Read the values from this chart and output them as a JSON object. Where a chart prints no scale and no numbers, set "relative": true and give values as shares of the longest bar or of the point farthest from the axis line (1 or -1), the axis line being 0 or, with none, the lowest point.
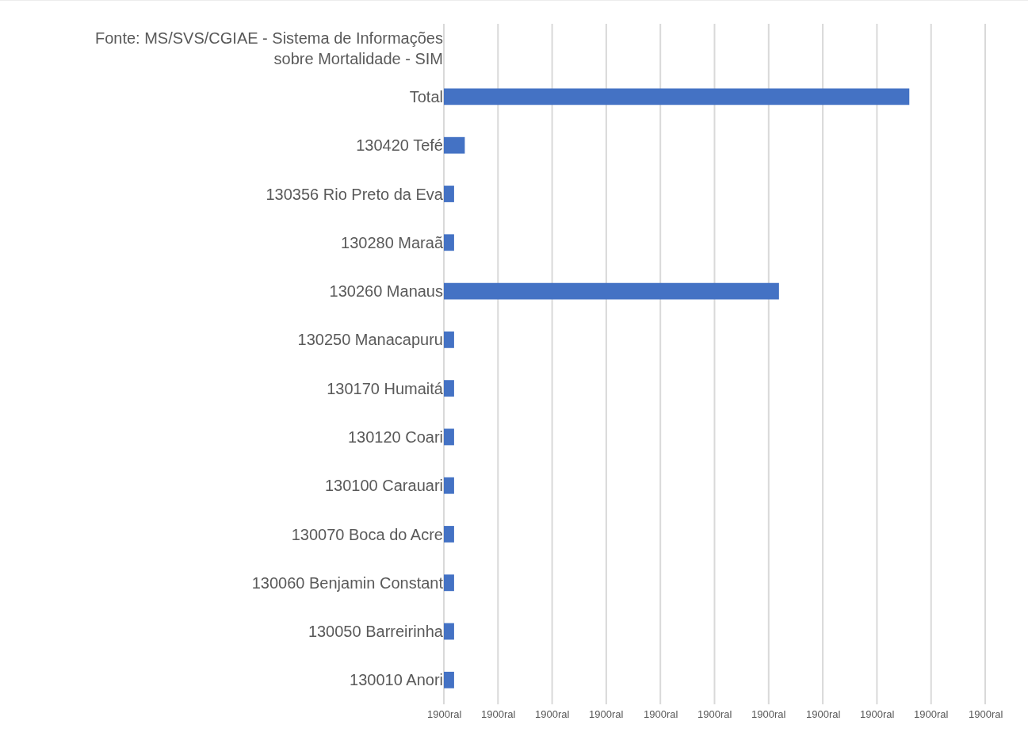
{
  "chart_data": {
    "type": "bar",
    "orientation": "horizontal",
    "relative": true,
    "categories": [
      "Fonte: MS/SVS/CGIAE - Sistema de Informações sobre Mortalidade - SIM",
      "Total",
      "130420 Tefé",
      "130356 Rio Preto da Eva",
      "130280 Maraã",
      "130260 Manaus",
      "130250 Manacapuru",
      "130170 Humaitá",
      "130120 Coari",
      "130100 Carauari",
      "130070 Boca do Acre",
      "130060 Benjamin Constant",
      "130050 Barreirinha",
      "130010 Anori"
    ],
    "values": [
      null,
      1,
      0.045,
      0.022,
      0.022,
      0.72,
      0.022,
      0.022,
      0.022,
      0.022,
      0.022,
      0.022,
      0.022,
      0.022
    ],
    "color": "#4472c4",
    "annotations": [
      "1900ral",
      "1900ral",
      "1900ral",
      "1900ral",
      "1900ral",
      "1900ral",
      "1900ral",
      "1900ral",
      "1900ral",
      "1900ral",
      "1900ral"
    ],
    "grid": "x"
  }
}
